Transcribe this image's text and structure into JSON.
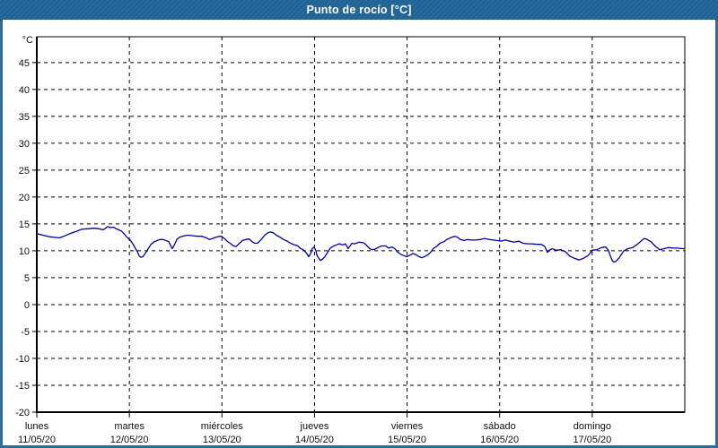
{
  "titlebar": {
    "title": "Punto de rocío [°C]"
  },
  "colors": {
    "titlebar_bg": "#1e6396",
    "frame": "#2d6f9f",
    "plot_bg": "#ffffff",
    "grid": "#000000",
    "axis": "#000000",
    "label_text": "#111111",
    "line": "#0000a0",
    "title_text": "#ffffff"
  },
  "chart_data": {
    "type": "line",
    "title": "Punto de rocío [°C]",
    "ylabel": "°C",
    "ylim": [
      -20,
      49.8
    ],
    "y_ticks": [
      45,
      40,
      35,
      30,
      25,
      20,
      15,
      10,
      5,
      0,
      -5,
      -10,
      -15,
      -20
    ],
    "grid": "dashed",
    "legend": "none",
    "x_axis": {
      "unit": "hours",
      "range_hours": [
        0,
        168
      ],
      "hours_per_day": 24,
      "days": [
        {
          "name": "lunes",
          "date": "11/05/20"
        },
        {
          "name": "martes",
          "date": "12/05/20"
        },
        {
          "name": "miércoles",
          "date": "13/05/20"
        },
        {
          "name": "jueves",
          "date": "14/05/20"
        },
        {
          "name": "viernes",
          "date": "15/05/20"
        },
        {
          "name": "sábado",
          "date": "16/05/20"
        },
        {
          "name": "domingo",
          "date": "17/05/20"
        }
      ]
    },
    "series": [
      {
        "name": "Punto de rocío",
        "color": "#0000a0",
        "points_hours_celsius": [
          [
            0,
            13.2
          ],
          [
            1.6,
            12.9
          ],
          [
            3.3,
            12.6
          ],
          [
            4.7,
            12.5
          ],
          [
            5.8,
            12.4
          ],
          [
            7,
            12.7
          ],
          [
            8.6,
            13.2
          ],
          [
            10.2,
            13.6
          ],
          [
            11.6,
            14
          ],
          [
            13.3,
            14.1
          ],
          [
            14.9,
            14.2
          ],
          [
            16.1,
            14.1
          ],
          [
            17.2,
            13.9
          ],
          [
            18.4,
            14.5
          ],
          [
            19.1,
            14.3
          ],
          [
            19.8,
            14.4
          ],
          [
            20.9,
            14
          ],
          [
            21.9,
            13.7
          ],
          [
            22.6,
            13.2
          ],
          [
            23.3,
            12.6
          ],
          [
            24.2,
            12
          ],
          [
            24.9,
            11.3
          ],
          [
            25.6,
            10.4
          ],
          [
            26.1,
            9.8
          ],
          [
            26.5,
            9.1
          ],
          [
            27,
            8.8
          ],
          [
            27.5,
            8.9
          ],
          [
            28.2,
            9.6
          ],
          [
            28.9,
            10.4
          ],
          [
            29.6,
            11.2
          ],
          [
            30.5,
            11.7
          ],
          [
            31.2,
            11.9
          ],
          [
            31.9,
            12.1
          ],
          [
            32.8,
            12.1
          ],
          [
            33.5,
            11.9
          ],
          [
            34.2,
            11.7
          ],
          [
            34.7,
            11
          ],
          [
            35.1,
            10.4
          ],
          [
            35.6,
            11
          ],
          [
            36.3,
            12.1
          ],
          [
            37,
            12.5
          ],
          [
            38.2,
            12.8
          ],
          [
            39.3,
            12.9
          ],
          [
            40.5,
            12.8
          ],
          [
            41.7,
            12.7
          ],
          [
            42.8,
            12.7
          ],
          [
            44,
            12.4
          ],
          [
            44.7,
            12.1
          ],
          [
            45.6,
            12.3
          ],
          [
            46.3,
            12.5
          ],
          [
            47.5,
            12.7
          ],
          [
            47.9,
            12.7
          ],
          [
            48.6,
            12.3
          ],
          [
            49.3,
            11.8
          ],
          [
            50.3,
            11.3
          ],
          [
            51,
            10.9
          ],
          [
            51.7,
            10.8
          ],
          [
            52.4,
            11.3
          ],
          [
            53.3,
            11.9
          ],
          [
            54.2,
            12.1
          ],
          [
            55.1,
            12.2
          ],
          [
            55.8,
            11.7
          ],
          [
            56.5,
            11.4
          ],
          [
            57.2,
            11.4
          ],
          [
            58.2,
            12.1
          ],
          [
            59.1,
            12.9
          ],
          [
            60,
            13.4
          ],
          [
            60.7,
            13.5
          ],
          [
            61.4,
            13.3
          ],
          [
            62.1,
            12.9
          ],
          [
            63.1,
            12.5
          ],
          [
            64,
            12.1
          ],
          [
            64.9,
            11.8
          ],
          [
            65.8,
            11.4
          ],
          [
            66.8,
            11.1
          ],
          [
            67.7,
            10.9
          ],
          [
            68.4,
            10.4
          ],
          [
            69.1,
            10.2
          ],
          [
            70,
            9.5
          ],
          [
            70.5,
            8.9
          ],
          [
            71,
            9.5
          ],
          [
            71.4,
            10.4
          ],
          [
            71.9,
            10.7
          ],
          [
            72.4,
            10
          ],
          [
            72.6,
            9.2
          ],
          [
            73.1,
            8.6
          ],
          [
            73.5,
            8.2
          ],
          [
            74,
            8.4
          ],
          [
            74.7,
            8.9
          ],
          [
            75.4,
            9.7
          ],
          [
            76.1,
            10.5
          ],
          [
            77,
            10.9
          ],
          [
            77.7,
            11.1
          ],
          [
            78.4,
            11.3
          ],
          [
            79.3,
            11.1
          ],
          [
            80,
            11.3
          ],
          [
            80.5,
            10.7
          ],
          [
            80.7,
            10.4
          ],
          [
            81.2,
            10.9
          ],
          [
            81.7,
            11.4
          ],
          [
            82.4,
            11.3
          ],
          [
            83.5,
            11.6
          ],
          [
            84.7,
            11.5
          ],
          [
            85.4,
            11.1
          ],
          [
            86.3,
            10.4
          ],
          [
            87,
            10.2
          ],
          [
            87.7,
            10.3
          ],
          [
            88.7,
            10.7
          ],
          [
            89.4,
            10.9
          ],
          [
            90.5,
            10.9
          ],
          [
            91.2,
            10.5
          ],
          [
            92.1,
            10.7
          ],
          [
            92.8,
            10.4
          ],
          [
            93.5,
            9.8
          ],
          [
            94.5,
            9.3
          ],
          [
            95.2,
            9.1
          ],
          [
            95.9,
            8.9
          ],
          [
            96.8,
            9.2
          ],
          [
            97.5,
            9.5
          ],
          [
            98.2,
            9.3
          ],
          [
            99.1,
            8.9
          ],
          [
            99.8,
            8.7
          ],
          [
            100.5,
            8.9
          ],
          [
            101.5,
            9.3
          ],
          [
            102.2,
            9.8
          ],
          [
            102.8,
            10.4
          ],
          [
            103.8,
            10.9
          ],
          [
            104.5,
            11.4
          ],
          [
            105.6,
            11.7
          ],
          [
            106.3,
            12.1
          ],
          [
            107.5,
            12.5
          ],
          [
            108.4,
            12.7
          ],
          [
            109.1,
            12.5
          ],
          [
            109.8,
            12.1
          ],
          [
            110.8,
            11.9
          ],
          [
            111.5,
            12.1
          ],
          [
            112.6,
            12
          ],
          [
            113.8,
            12
          ],
          [
            115,
            12.1
          ],
          [
            116.1,
            12.3
          ],
          [
            117.3,
            12.1
          ],
          [
            118.4,
            12
          ],
          [
            119.4,
            11.9
          ],
          [
            120.3,
            11.8
          ],
          [
            121.5,
            12
          ],
          [
            122.6,
            11.8
          ],
          [
            123.8,
            11.6
          ],
          [
            124.9,
            11.8
          ],
          [
            126.1,
            11.4
          ],
          [
            127.3,
            11.3
          ],
          [
            128.4,
            11.3
          ],
          [
            129.6,
            11.2
          ],
          [
            130.8,
            11.2
          ],
          [
            131.7,
            10.8
          ],
          [
            132.4,
            9.7
          ],
          [
            132.9,
            10.1
          ],
          [
            133.6,
            10.4
          ],
          [
            134.3,
            10.2
          ],
          [
            134.7,
            10.1
          ],
          [
            135.9,
            10.2
          ],
          [
            137.1,
            9.8
          ],
          [
            138.2,
            9
          ],
          [
            139.4,
            8.6
          ],
          [
            140.6,
            8.3
          ],
          [
            141.7,
            8.6
          ],
          [
            142.9,
            9.1
          ],
          [
            143.3,
            9.4
          ],
          [
            144,
            10.1
          ],
          [
            145.2,
            10.2
          ],
          [
            146.4,
            10.6
          ],
          [
            147.5,
            10.7
          ],
          [
            148.2,
            10.1
          ],
          [
            148.7,
            9
          ],
          [
            149.2,
            8.2
          ],
          [
            149.6,
            7.9
          ],
          [
            150.1,
            8
          ],
          [
            151,
            8.7
          ],
          [
            152.2,
            10
          ],
          [
            153.3,
            10.4
          ],
          [
            154.5,
            10.6
          ],
          [
            155.7,
            11.2
          ],
          [
            156.8,
            11.9
          ],
          [
            157.5,
            12.3
          ],
          [
            158,
            12.2
          ],
          [
            159.2,
            11.7
          ],
          [
            160.3,
            10.9
          ],
          [
            161.5,
            10.2
          ],
          [
            162.6,
            10.4
          ],
          [
            163.8,
            10.6
          ],
          [
            165,
            10.5
          ],
          [
            166.1,
            10.5
          ],
          [
            167.3,
            10.4
          ],
          [
            168,
            10.4
          ]
        ]
      }
    ]
  }
}
